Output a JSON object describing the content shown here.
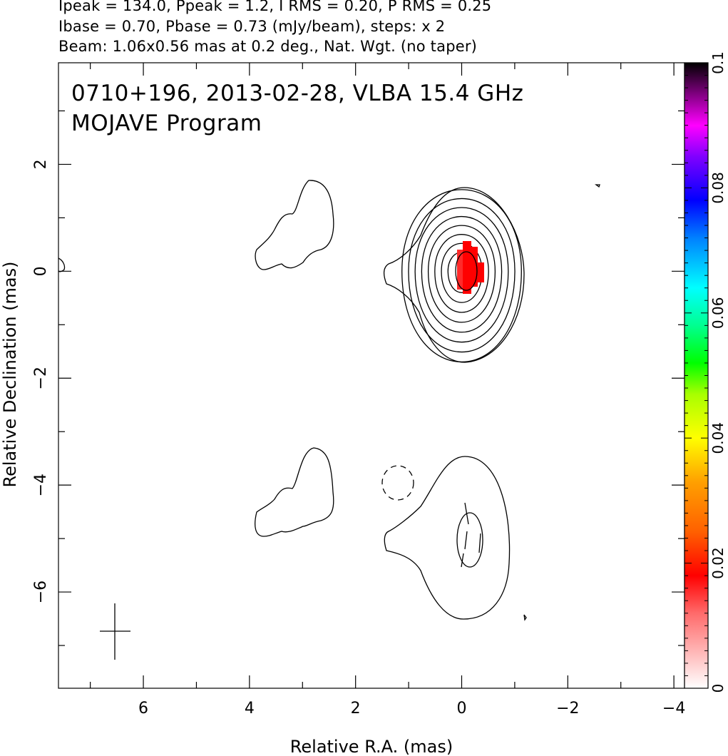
{
  "header": {
    "line1": "Ipeak = 134.0, Ppeak = 1.2, I RMS = 0.20, P RMS = 0.25",
    "line2": "Ibase = 0.70, Pbase = 0.73 (mJy/beam), steps: x 2",
    "line3": "Beam: 1.06x0.56 mas at 0.2 deg., Nat. Wgt. (no taper)"
  },
  "chart_data": {
    "type": "contour",
    "title": "0710+196, 2013-02-28, VLBA 15.4 GHz",
    "subtitle": "MOJAVE Program",
    "xlabel": "Relative R.A. (mas)",
    "ylabel": "Relative Declination (mas)",
    "xlim": [
      7.6,
      -4.2
    ],
    "ylim": [
      -7.8,
      3.9
    ],
    "x_ticks": [
      6,
      4,
      2,
      0,
      -2,
      -4
    ],
    "x_tick_labels": [
      "6",
      "4",
      "2",
      "0",
      "−2",
      "−4"
    ],
    "y_ticks": [
      2,
      0,
      -2,
      -4,
      -6
    ],
    "y_tick_labels": [
      "2",
      "0",
      "−2",
      "−4",
      "−6"
    ],
    "colorbar": {
      "range": [
        0,
        0.1
      ],
      "ticks": [
        0,
        0.02,
        0.04,
        0.06,
        0.08,
        0.1
      ],
      "tick_labels": [
        "0",
        "0.02",
        "0.04",
        "0.06",
        "0.08",
        "0.1"
      ]
    },
    "core": {
      "x": 0,
      "y": 0,
      "contour_levels": 9
    },
    "lower_panel_offset_y": -5.0,
    "beam": {
      "x": 6.55,
      "y": -6.75,
      "major_mas": 1.06,
      "minor_mas": 0.56,
      "pa_deg": 0.2
    },
    "polarization_peak": {
      "x": 0.0,
      "y": 0.0,
      "color": "#ff0000"
    }
  }
}
